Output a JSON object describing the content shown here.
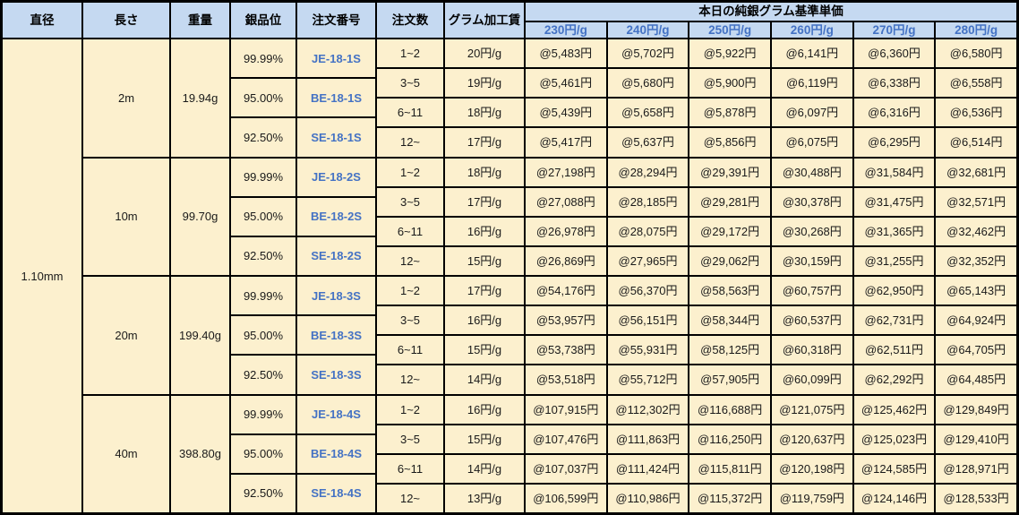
{
  "table": {
    "headers": {
      "diameter": "直径",
      "length": "長さ",
      "weight": "重量",
      "purity": "銀品位",
      "order_no": "注文番号",
      "order_qty": "注文数",
      "gram_fee": "グラム加工賃",
      "price_group_title": "本日の純銀グラム基準単価",
      "price_cols": [
        "230円/g",
        "240円/g",
        "250円/g",
        "260円/g",
        "270円/g",
        "280円/g"
      ]
    },
    "diameter": "1.10mm",
    "groups": [
      {
        "length": "2m",
        "weight": "19.94g",
        "purities": [
          {
            "purity": "99.99%",
            "order_no": "JE-18-1S"
          },
          {
            "purity": "95.00%",
            "order_no": "BE-18-1S"
          },
          {
            "purity": "92.50%",
            "order_no": "SE-18-1S"
          }
        ],
        "rows": [
          {
            "qty": "1~2",
            "fee": "20円/g",
            "prices": [
              "@5,483円",
              "@5,702円",
              "@5,922円",
              "@6,141円",
              "@6,360円",
              "@6,580円"
            ]
          },
          {
            "qty": "3~5",
            "fee": "19円/g",
            "prices": [
              "@5,461円",
              "@5,680円",
              "@5,900円",
              "@6,119円",
              "@6,338円",
              "@6,558円"
            ]
          },
          {
            "qty": "6~11",
            "fee": "18円/g",
            "prices": [
              "@5,439円",
              "@5,658円",
              "@5,878円",
              "@6,097円",
              "@6,316円",
              "@6,536円"
            ]
          },
          {
            "qty": "12~",
            "fee": "17円/g",
            "prices": [
              "@5,417円",
              "@5,637円",
              "@5,856円",
              "@6,075円",
              "@6,295円",
              "@6,514円"
            ]
          }
        ]
      },
      {
        "length": "10m",
        "weight": "99.70g",
        "purities": [
          {
            "purity": "99.99%",
            "order_no": "JE-18-2S"
          },
          {
            "purity": "95.00%",
            "order_no": "BE-18-2S"
          },
          {
            "purity": "92.50%",
            "order_no": "SE-18-2S"
          }
        ],
        "rows": [
          {
            "qty": "1~2",
            "fee": "18円/g",
            "prices": [
              "@27,198円",
              "@28,294円",
              "@29,391円",
              "@30,488円",
              "@31,584円",
              "@32,681円"
            ]
          },
          {
            "qty": "3~5",
            "fee": "17円/g",
            "prices": [
              "@27,088円",
              "@28,185円",
              "@29,281円",
              "@30,378円",
              "@31,475円",
              "@32,571円"
            ]
          },
          {
            "qty": "6~11",
            "fee": "16円/g",
            "prices": [
              "@26,978円",
              "@28,075円",
              "@29,172円",
              "@30,268円",
              "@31,365円",
              "@32,462円"
            ]
          },
          {
            "qty": "12~",
            "fee": "15円/g",
            "prices": [
              "@26,869円",
              "@27,965円",
              "@29,062円",
              "@30,159円",
              "@31,255円",
              "@32,352円"
            ]
          }
        ]
      },
      {
        "length": "20m",
        "weight": "199.40g",
        "purities": [
          {
            "purity": "99.99%",
            "order_no": "JE-18-3S"
          },
          {
            "purity": "95.00%",
            "order_no": "BE-18-3S"
          },
          {
            "purity": "92.50%",
            "order_no": "SE-18-3S"
          }
        ],
        "rows": [
          {
            "qty": "1~2",
            "fee": "17円/g",
            "prices": [
              "@54,176円",
              "@56,370円",
              "@58,563円",
              "@60,757円",
              "@62,950円",
              "@65,143円"
            ]
          },
          {
            "qty": "3~5",
            "fee": "16円/g",
            "prices": [
              "@53,957円",
              "@56,151円",
              "@58,344円",
              "@60,537円",
              "@62,731円",
              "@64,924円"
            ]
          },
          {
            "qty": "6~11",
            "fee": "15円/g",
            "prices": [
              "@53,738円",
              "@55,931円",
              "@58,125円",
              "@60,318円",
              "@62,511円",
              "@64,705円"
            ]
          },
          {
            "qty": "12~",
            "fee": "14円/g",
            "prices": [
              "@53,518円",
              "@55,712円",
              "@57,905円",
              "@60,099円",
              "@62,292円",
              "@64,485円"
            ]
          }
        ]
      },
      {
        "length": "40m",
        "weight": "398.80g",
        "purities": [
          {
            "purity": "99.99%",
            "order_no": "JE-18-4S"
          },
          {
            "purity": "95.00%",
            "order_no": "BE-18-4S"
          },
          {
            "purity": "92.50%",
            "order_no": "SE-18-4S"
          }
        ],
        "rows": [
          {
            "qty": "1~2",
            "fee": "16円/g",
            "prices": [
              "@107,915円",
              "@112,302円",
              "@116,688円",
              "@121,075円",
              "@125,462円",
              "@129,849円"
            ]
          },
          {
            "qty": "3~5",
            "fee": "15円/g",
            "prices": [
              "@107,476円",
              "@111,863円",
              "@116,250円",
              "@120,637円",
              "@125,023円",
              "@129,410円"
            ]
          },
          {
            "qty": "6~11",
            "fee": "14円/g",
            "prices": [
              "@107,037円",
              "@111,424円",
              "@115,811円",
              "@120,198円",
              "@124,585円",
              "@128,971円"
            ]
          },
          {
            "qty": "12~",
            "fee": "13円/g",
            "prices": [
              "@106,599円",
              "@110,986円",
              "@115,372円",
              "@119,759円",
              "@124,146円",
              "@128,533円"
            ]
          }
        ]
      }
    ],
    "colors": {
      "header_bg": "#C5D9F1",
      "cell_bg": "#FCF0CE",
      "accent_blue_text": "#4472C4",
      "border": "#000000"
    }
  }
}
